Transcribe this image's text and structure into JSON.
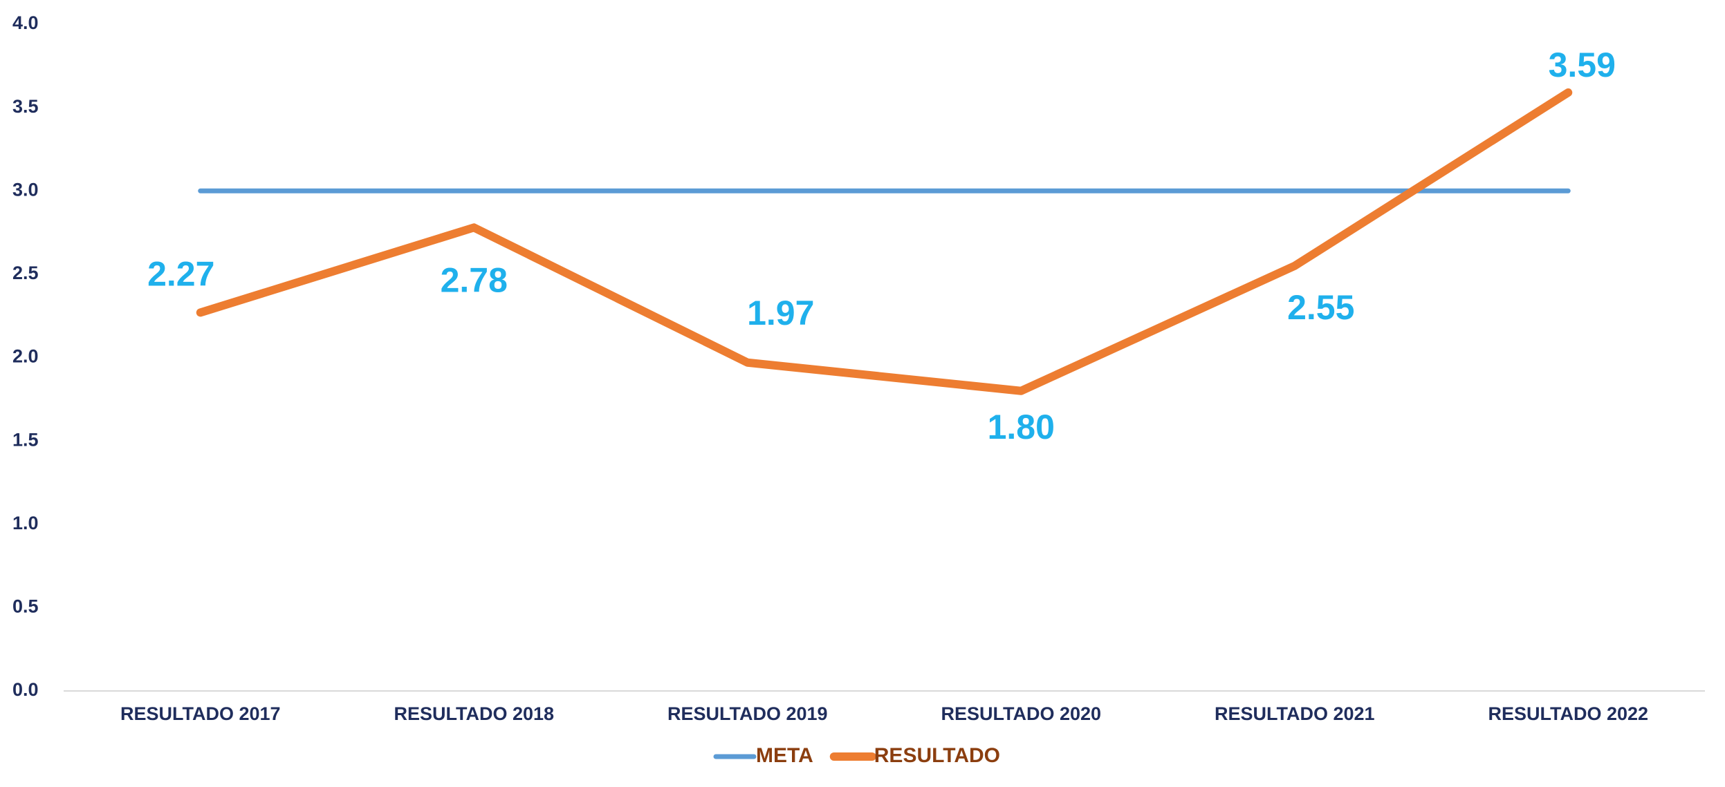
{
  "chart_data": {
    "type": "line",
    "categories": [
      "RESULTADO 2017",
      "RESULTADO 2018",
      "RESULTADO 2019",
      "RESULTADO 2020",
      "RESULTADO 2021",
      "RESULTADO 2022"
    ],
    "series": [
      {
        "name": "META",
        "color": "#5b9bd5",
        "values": [
          3,
          3,
          3,
          3,
          3,
          3
        ]
      },
      {
        "name": "RESULTADO",
        "color": "#ed7d31",
        "values": [
          2.27,
          2.78,
          1.97,
          1.8,
          2.55,
          3.59
        ],
        "value_labels": [
          "2.27",
          "2.78",
          "1.97",
          "1.80",
          "2.55",
          "3.59"
        ]
      }
    ],
    "ylim": [
      0,
      4
    ],
    "yticks": [
      {
        "value": 0,
        "label": "0.0"
      },
      0.5,
      {
        "value": 1,
        "label": "1.0"
      },
      1.5,
      {
        "value": 2,
        "label": "2.0"
      },
      2.5,
      {
        "value": 3,
        "label": "3.0"
      },
      3.5,
      {
        "value": 4,
        "label": "4.0"
      }
    ],
    "grid": false,
    "legend": "bottom"
  }
}
